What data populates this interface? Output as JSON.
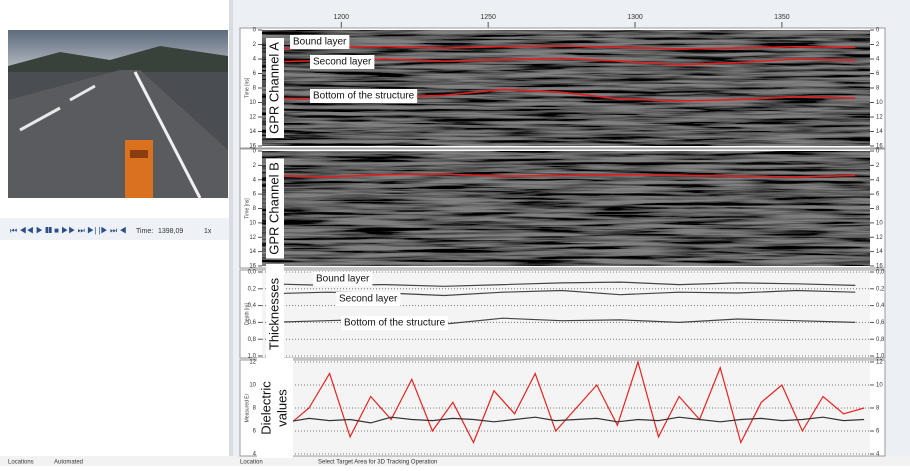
{
  "video_controls": {
    "time_label": "Time:",
    "time": "1398,09",
    "speed": "1x"
  },
  "status_bar": {
    "left": [
      "Locations",
      "Automated"
    ],
    "location_label": "Location",
    "message": "Select Target Area for 3D Tracking Operation"
  },
  "trace_axis": {
    "xlim": [
      1173,
      1380
    ],
    "xticks": [
      1200,
      1250,
      1300,
      1350
    ]
  },
  "panels": [
    {
      "type": "radargram",
      "title_lines": [
        "GPR Channel A"
      ],
      "y_label": "Time [ns]",
      "ylim": [
        0,
        16
      ],
      "y_inverted": true,
      "yticks": [
        0,
        2,
        4,
        6,
        8,
        10,
        12,
        14,
        16
      ],
      "x": [
        1175,
        1195,
        1215,
        1235,
        1255,
        1275,
        1295,
        1315,
        1335,
        1355,
        1375
      ],
      "series": [
        {
          "name": "Bound layer",
          "color": "#e02020",
          "values": [
            2.6,
            2.4,
            2.3,
            2.5,
            2.3,
            2.2,
            2.4,
            2.6,
            2.5,
            2.3,
            2.4
          ]
        },
        {
          "name": "Second layer",
          "color": "#e02020",
          "values": [
            4.4,
            4.2,
            4.0,
            4.3,
            4.1,
            3.9,
            4.3,
            4.8,
            4.5,
            4.0,
            4.2
          ]
        },
        {
          "name": "Bottom of the structure",
          "color": "#e02020",
          "values": [
            9.4,
            9.5,
            9.3,
            9.0,
            8.2,
            8.6,
            9.5,
            9.8,
            9.6,
            9.2,
            9.4
          ]
        }
      ]
    },
    {
      "type": "radargram",
      "title_lines": [
        "GPR Channel B"
      ],
      "y_label": "Time [ns]",
      "ylim": [
        0,
        16
      ],
      "y_inverted": true,
      "yticks": [
        0,
        2,
        4,
        6,
        8,
        10,
        12,
        14,
        16
      ],
      "x": [
        1175,
        1195,
        1215,
        1235,
        1255,
        1275,
        1295,
        1315,
        1335,
        1355,
        1375
      ],
      "series": [
        {
          "color": "#e02020",
          "values": [
            3.4,
            3.6,
            3.3,
            3.2,
            3.5,
            3.4,
            3.3,
            3.4,
            3.5,
            3.6,
            3.4
          ]
        }
      ]
    },
    {
      "type": "line",
      "title_lines": [
        "Thicknesses"
      ],
      "y_label": "Depth [m]",
      "ylim": [
        0,
        1
      ],
      "y_inverted": true,
      "yticks": [
        {
          "value": 0,
          "label": "0,0"
        },
        {
          "value": 0.2,
          "label": "0,2"
        },
        {
          "value": 0.4,
          "label": "0,4"
        },
        {
          "value": 0.6,
          "label": "0,6"
        },
        {
          "value": 0.8,
          "label": "0,8"
        },
        {
          "value": 1,
          "label": "1,0"
        }
      ],
      "x": [
        1175,
        1195,
        1215,
        1235,
        1255,
        1275,
        1295,
        1315,
        1335,
        1355,
        1375
      ],
      "series": [
        {
          "name": "Bound layer",
          "color": "#444444",
          "values": [
            0.14,
            0.16,
            0.15,
            0.17,
            0.15,
            0.13,
            0.12,
            0.15,
            0.13,
            0.14,
            0.16
          ]
        },
        {
          "name": "Second layer",
          "color": "#444444",
          "values": [
            0.26,
            0.24,
            0.25,
            0.28,
            0.24,
            0.22,
            0.27,
            0.24,
            0.25,
            0.22,
            0.24
          ]
        },
        {
          "name": "Bottom of the structure",
          "color": "#444444",
          "values": [
            0.6,
            0.58,
            0.56,
            0.62,
            0.55,
            0.58,
            0.57,
            0.6,
            0.56,
            0.58,
            0.6
          ]
        }
      ]
    },
    {
      "type": "line",
      "title_lines": [
        "Dielectric",
        "values"
      ],
      "y_label": "Measured Er",
      "ylim": [
        4,
        12
      ],
      "y_inverted": false,
      "yticks": [
        4,
        6,
        8,
        10,
        12
      ],
      "x": [
        1175,
        1182,
        1189,
        1196,
        1203,
        1210,
        1217,
        1224,
        1231,
        1238,
        1245,
        1252,
        1259,
        1266,
        1273,
        1280,
        1287,
        1294,
        1301,
        1308,
        1315,
        1322,
        1329,
        1336,
        1343,
        1350,
        1357,
        1364,
        1371,
        1378
      ],
      "series": [
        {
          "color": "#e8231f",
          "values": [
            10,
            6.5,
            8,
            11,
            5.5,
            9,
            7,
            10.5,
            6,
            8.5,
            5,
            9.5,
            7.5,
            11,
            6,
            8,
            10,
            6.5,
            12,
            5.5,
            9,
            7,
            11.5,
            5,
            8.5,
            10,
            6,
            9,
            7.5,
            8
          ]
        },
        {
          "color": "#333333",
          "values": [
            7,
            6.8,
            7.1,
            6.9,
            7,
            6.7,
            7.2,
            7,
            6.9,
            7.1,
            7,
            6.8,
            7,
            7.2,
            6.9,
            7,
            7.1,
            6.8,
            7,
            6.9,
            7.2,
            7,
            6.8,
            7,
            7.1,
            6.9,
            7,
            7.2,
            6.9,
            7
          ]
        }
      ]
    }
  ]
}
